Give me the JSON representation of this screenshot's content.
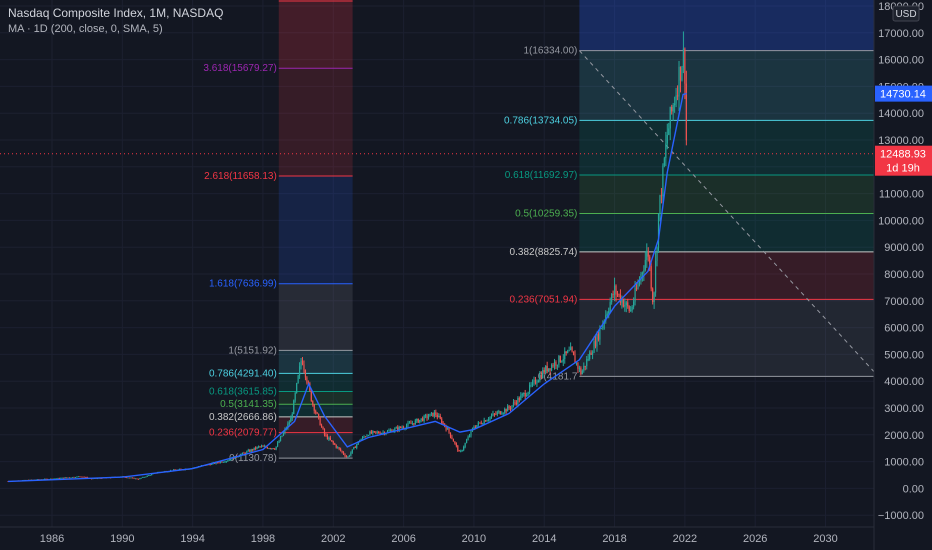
{
  "header": {
    "title": "Nasdaq Composite Index, 1M, NASDAQ",
    "indicator": "MA · 1D (200, close, 0, SMA, 5)"
  },
  "axis": {
    "currency": "USD",
    "y_ticks": [
      "18000.00",
      "17000.00",
      "16000.00",
      "15000.00",
      "14000.00",
      "13000.00",
      "12000.00",
      "11000.00",
      "10000.00",
      "9000.00",
      "8000.00",
      "7000.00",
      "6000.00",
      "5000.00",
      "4000.00",
      "3000.00",
      "2000.00",
      "1000.00",
      "0.00",
      "−1000.00"
    ],
    "x_ticks": [
      "1986",
      "1990",
      "1994",
      "1998",
      "2002",
      "2006",
      "2010",
      "2014",
      "2018",
      "2022",
      "2026",
      "2030"
    ]
  },
  "price_badges": {
    "ma_value": "14730.14",
    "last_price": "12488.93",
    "countdown": "1d 19h"
  },
  "colors": {
    "background": "#131722",
    "up": "#26a69a",
    "down": "#ef5350",
    "ma_line": "#2962ff",
    "fib_blue": "#2962ff",
    "fib_red": "#f23645",
    "fib_green": "#089981",
    "fib_teal": "#4dd0e1",
    "fib_purple": "#9c27b0"
  },
  "chart_data": {
    "type": "candlestick",
    "timeframe": "1M",
    "ylim": [
      -1000,
      18000
    ],
    "xlim": [
      1982,
      2034
    ],
    "price_path": [
      [
        1983.5,
        270
      ],
      [
        1986,
        360
      ],
      [
        1987.7,
        450
      ],
      [
        1988.2,
        360
      ],
      [
        1990,
        440
      ],
      [
        1990.9,
        350
      ],
      [
        1992,
        600
      ],
      [
        1994,
        760
      ],
      [
        1996,
        1050
      ],
      [
        1997.8,
        1560
      ],
      [
        1998.7,
        1500
      ],
      [
        1999.6,
        2600
      ],
      [
        2000.2,
        4900
      ],
      [
        2000.8,
        3200
      ],
      [
        2001.5,
        2000
      ],
      [
        2002.8,
        1150
      ],
      [
        2003.5,
        1800
      ],
      [
        2004,
        2050
      ],
      [
        2005,
        2100
      ],
      [
        2006,
        2300
      ],
      [
        2007.8,
        2800
      ],
      [
        2008.5,
        2200
      ],
      [
        2009.2,
        1300
      ],
      [
        2010,
        2300
      ],
      [
        2011,
        2700
      ],
      [
        2012,
        3000
      ],
      [
        2013,
        3600
      ],
      [
        2014,
        4400
      ],
      [
        2015.5,
        5100
      ],
      [
        2016.1,
        4300
      ],
      [
        2017,
        5600
      ],
      [
        2018,
        7400
      ],
      [
        2018.9,
        6600
      ],
      [
        2019.9,
        8900
      ],
      [
        2020.2,
        6900
      ],
      [
        2020.5,
        10200
      ],
      [
        2021,
        13200
      ],
      [
        2021.9,
        16200
      ],
      [
        2022.0,
        15600
      ],
      [
        2022.1,
        12488.93
      ]
    ],
    "moving_average": [
      [
        1983.5,
        260
      ],
      [
        1990,
        420
      ],
      [
        1994,
        740
      ],
      [
        1998,
        1450
      ],
      [
        1999.8,
        2500
      ],
      [
        2000.6,
        3900
      ],
      [
        2001.5,
        2700
      ],
      [
        2002.8,
        1550
      ],
      [
        2004,
        1900
      ],
      [
        2007.8,
        2500
      ],
      [
        2009.2,
        2100
      ],
      [
        2010,
        2200
      ],
      [
        2012,
        2800
      ],
      [
        2014,
        3900
      ],
      [
        2016,
        4800
      ],
      [
        2018,
        6800
      ],
      [
        2019.9,
        8100
      ],
      [
        2020.5,
        9300
      ],
      [
        2021,
        11800
      ],
      [
        2021.9,
        14700
      ],
      [
        2022.1,
        14730.14
      ]
    ],
    "fibonacci": [
      {
        "range": [
          1998.9,
          2003.1
        ],
        "extend_to": 2003.1,
        "levels": [
          {
            "ratio": "0",
            "price": 1130.78,
            "label": "0(1130.78)",
            "color": "#9598a1"
          },
          {
            "ratio": "0.236",
            "price": 2079.77,
            "label": "0.236(2079.77)",
            "color": "#f23645"
          },
          {
            "ratio": "0.382",
            "price": 2666.86,
            "label": "0.382(2666.86)",
            "color": "#c8c8c8"
          },
          {
            "ratio": "0.5",
            "price": 3141.35,
            "label": "0.5(3141.35)",
            "color": "#4caf50"
          },
          {
            "ratio": "0.618",
            "price": 3615.85,
            "label": "0.618(3615.85)",
            "color": "#089981"
          },
          {
            "ratio": "0.786",
            "price": 4291.4,
            "label": "0.786(4291.40)",
            "color": "#4dd0e1"
          },
          {
            "ratio": "1",
            "price": 5151.92,
            "label": "1(5151.92)",
            "color": "#9598a1"
          },
          {
            "ratio": "1.618",
            "price": 7636.99,
            "label": "1.618(7636.99)",
            "color": "#2962ff"
          },
          {
            "ratio": "2.618",
            "price": 11658.13,
            "label": "2.618(11658.13)",
            "color": "#f23645"
          },
          {
            "ratio": "3.618",
            "price": 15679.27,
            "label": "3.618(15679.27)",
            "color": "#9c27b0"
          }
        ]
      },
      {
        "range": [
          2016.0,
          2033.0
        ],
        "levels": [
          {
            "ratio": "0",
            "price": 4181.7,
            "label": "0(4181.7",
            "color": "#9598a1"
          },
          {
            "ratio": "0.236",
            "price": 7051.94,
            "label": "0.236(7051.94)",
            "color": "#f23645"
          },
          {
            "ratio": "0.382",
            "price": 8825.74,
            "label": "0.382(8825.74)",
            "color": "#c8c8c8"
          },
          {
            "ratio": "0.5",
            "price": 10259.35,
            "label": "0.5(10259.35)",
            "color": "#4caf50"
          },
          {
            "ratio": "0.618",
            "price": 11692.97,
            "label": "0.618(11692.97)",
            "color": "#089981"
          },
          {
            "ratio": "0.786",
            "price": 13734.05,
            "label": "0.786(13734.05)",
            "color": "#4dd0e1"
          },
          {
            "ratio": "1",
            "price": 16334.0,
            "label": "1(16334.00)",
            "color": "#9598a1"
          }
        ]
      }
    ],
    "trend_line": [
      [
        2016.0,
        16334.0
      ],
      [
        2033.0,
        4181.7
      ]
    ],
    "last_price_line": 12488.93
  }
}
